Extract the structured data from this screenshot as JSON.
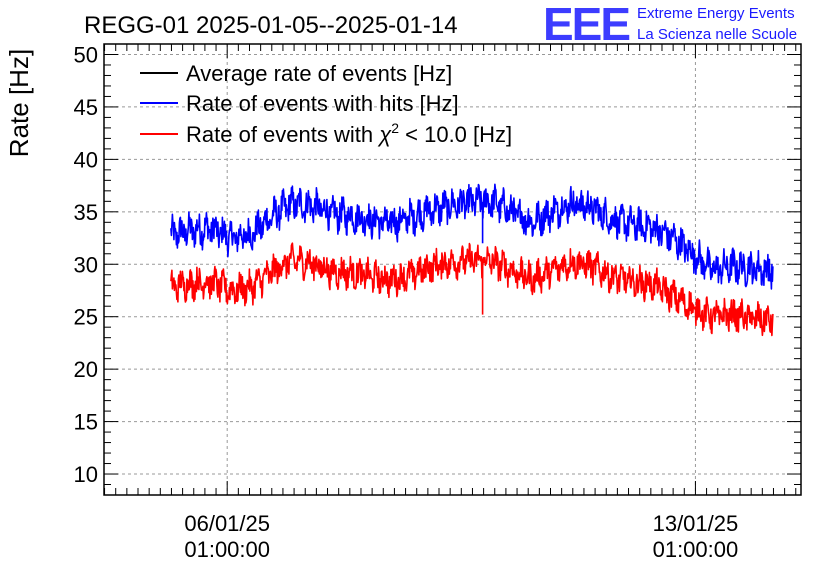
{
  "chart_data": {
    "type": "line",
    "title": "REGG-01 2025-01-05--2025-01-14",
    "ylabel": "Rate [Hz]",
    "xlabel": "",
    "ylim": [
      8,
      51
    ],
    "yticks": [
      10,
      15,
      20,
      25,
      30,
      35,
      40,
      45,
      50
    ],
    "xlim_days": [
      4.2,
      14.62
    ],
    "xticks": [
      {
        "day": 6.0417,
        "date": "06/01/25",
        "time": "01:00:00"
      },
      {
        "day": 13.0417,
        "date": "13/01/25",
        "time": "01:00:00"
      }
    ],
    "grid": true,
    "legend_position": "top-left",
    "legend": [
      {
        "label": "Average rate of events [Hz]",
        "color": "#000000"
      },
      {
        "label": "Rate of events with hits [Hz]",
        "color": "#0000ff"
      },
      {
        "label_prefix": "Rate of events with ",
        "label_symbol": "χ",
        "label_sup": "2",
        "label_suffix": " < 10.0 [Hz]",
        "color": "#ff0000"
      }
    ],
    "x_days": [
      5.2,
      5.5,
      5.8,
      6.1,
      6.4,
      6.7,
      7.0,
      7.3,
      7.6,
      7.9,
      8.2,
      8.5,
      8.8,
      9.1,
      9.4,
      9.7,
      10.0,
      10.3,
      10.6,
      10.9,
      11.2,
      11.5,
      11.8,
      12.1,
      12.4,
      12.7,
      13.0,
      13.3,
      13.6,
      13.9,
      14.2
    ],
    "series": [
      {
        "name": "Rate of events with hits [Hz]",
        "color": "#0000ff",
        "noise_band": 2.6,
        "values": [
          32.8,
          33.2,
          33.4,
          32.5,
          32.8,
          34.5,
          35.8,
          35.6,
          34.8,
          34.6,
          34.2,
          33.9,
          34.5,
          35.2,
          35.6,
          35.9,
          36.0,
          35.0,
          34.0,
          35.0,
          35.8,
          35.4,
          34.2,
          33.8,
          33.5,
          32.5,
          31.0,
          29.5,
          29.8,
          29.6,
          29.4
        ]
      },
      {
        "name": "Rate of events with χ² < 10.0 [Hz]",
        "color": "#ff0000",
        "noise_band": 2.4,
        "values": [
          27.8,
          28.2,
          28.3,
          27.5,
          27.8,
          29.2,
          30.4,
          30.1,
          29.3,
          29.2,
          28.8,
          28.5,
          29.0,
          29.8,
          30.2,
          30.4,
          30.3,
          29.4,
          28.6,
          29.4,
          30.2,
          29.8,
          28.8,
          28.3,
          28.1,
          27.0,
          25.8,
          25.0,
          25.2,
          24.8,
          24.6
        ]
      }
    ],
    "dips": [
      {
        "series": 1,
        "day": 9.86,
        "value": 25.2
      },
      {
        "series": 0,
        "day": 9.86,
        "value": 32.0
      }
    ]
  },
  "logo": {
    "letters": "EEE",
    "line1": "Extreme Energy Events",
    "line2": "La Scienza nelle Scuole",
    "color": "#1a1aff"
  }
}
